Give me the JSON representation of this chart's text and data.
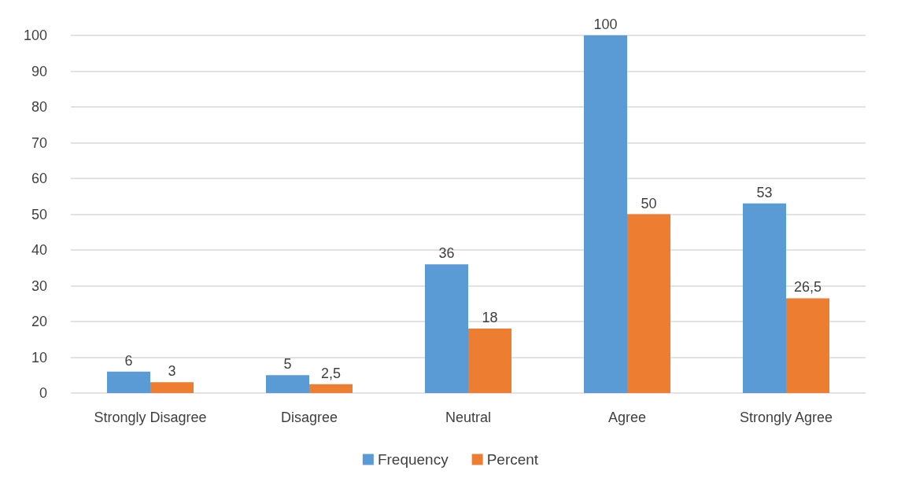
{
  "chart_data": {
    "type": "bar",
    "categories": [
      "Strongly Disagree",
      "Disagree",
      "Neutral",
      "Agree",
      "Strongly Agree"
    ],
    "series": [
      {
        "name": "Frequency",
        "color": "#5b9bd5",
        "values": [
          6,
          5,
          36,
          100,
          53
        ],
        "value_labels": [
          "6",
          "5",
          "36",
          "100",
          "53"
        ]
      },
      {
        "name": "Percent",
        "color": "#ed7d31",
        "values": [
          3,
          2.5,
          18,
          50,
          26.5
        ],
        "value_labels": [
          "3",
          "2,5",
          "18",
          "50",
          "26,5"
        ]
      }
    ],
    "ylim": [
      0,
      100
    ],
    "yticks": [
      0,
      10,
      20,
      30,
      40,
      50,
      60,
      70,
      80,
      90,
      100
    ],
    "grid": "y",
    "legend": "bottom"
  }
}
